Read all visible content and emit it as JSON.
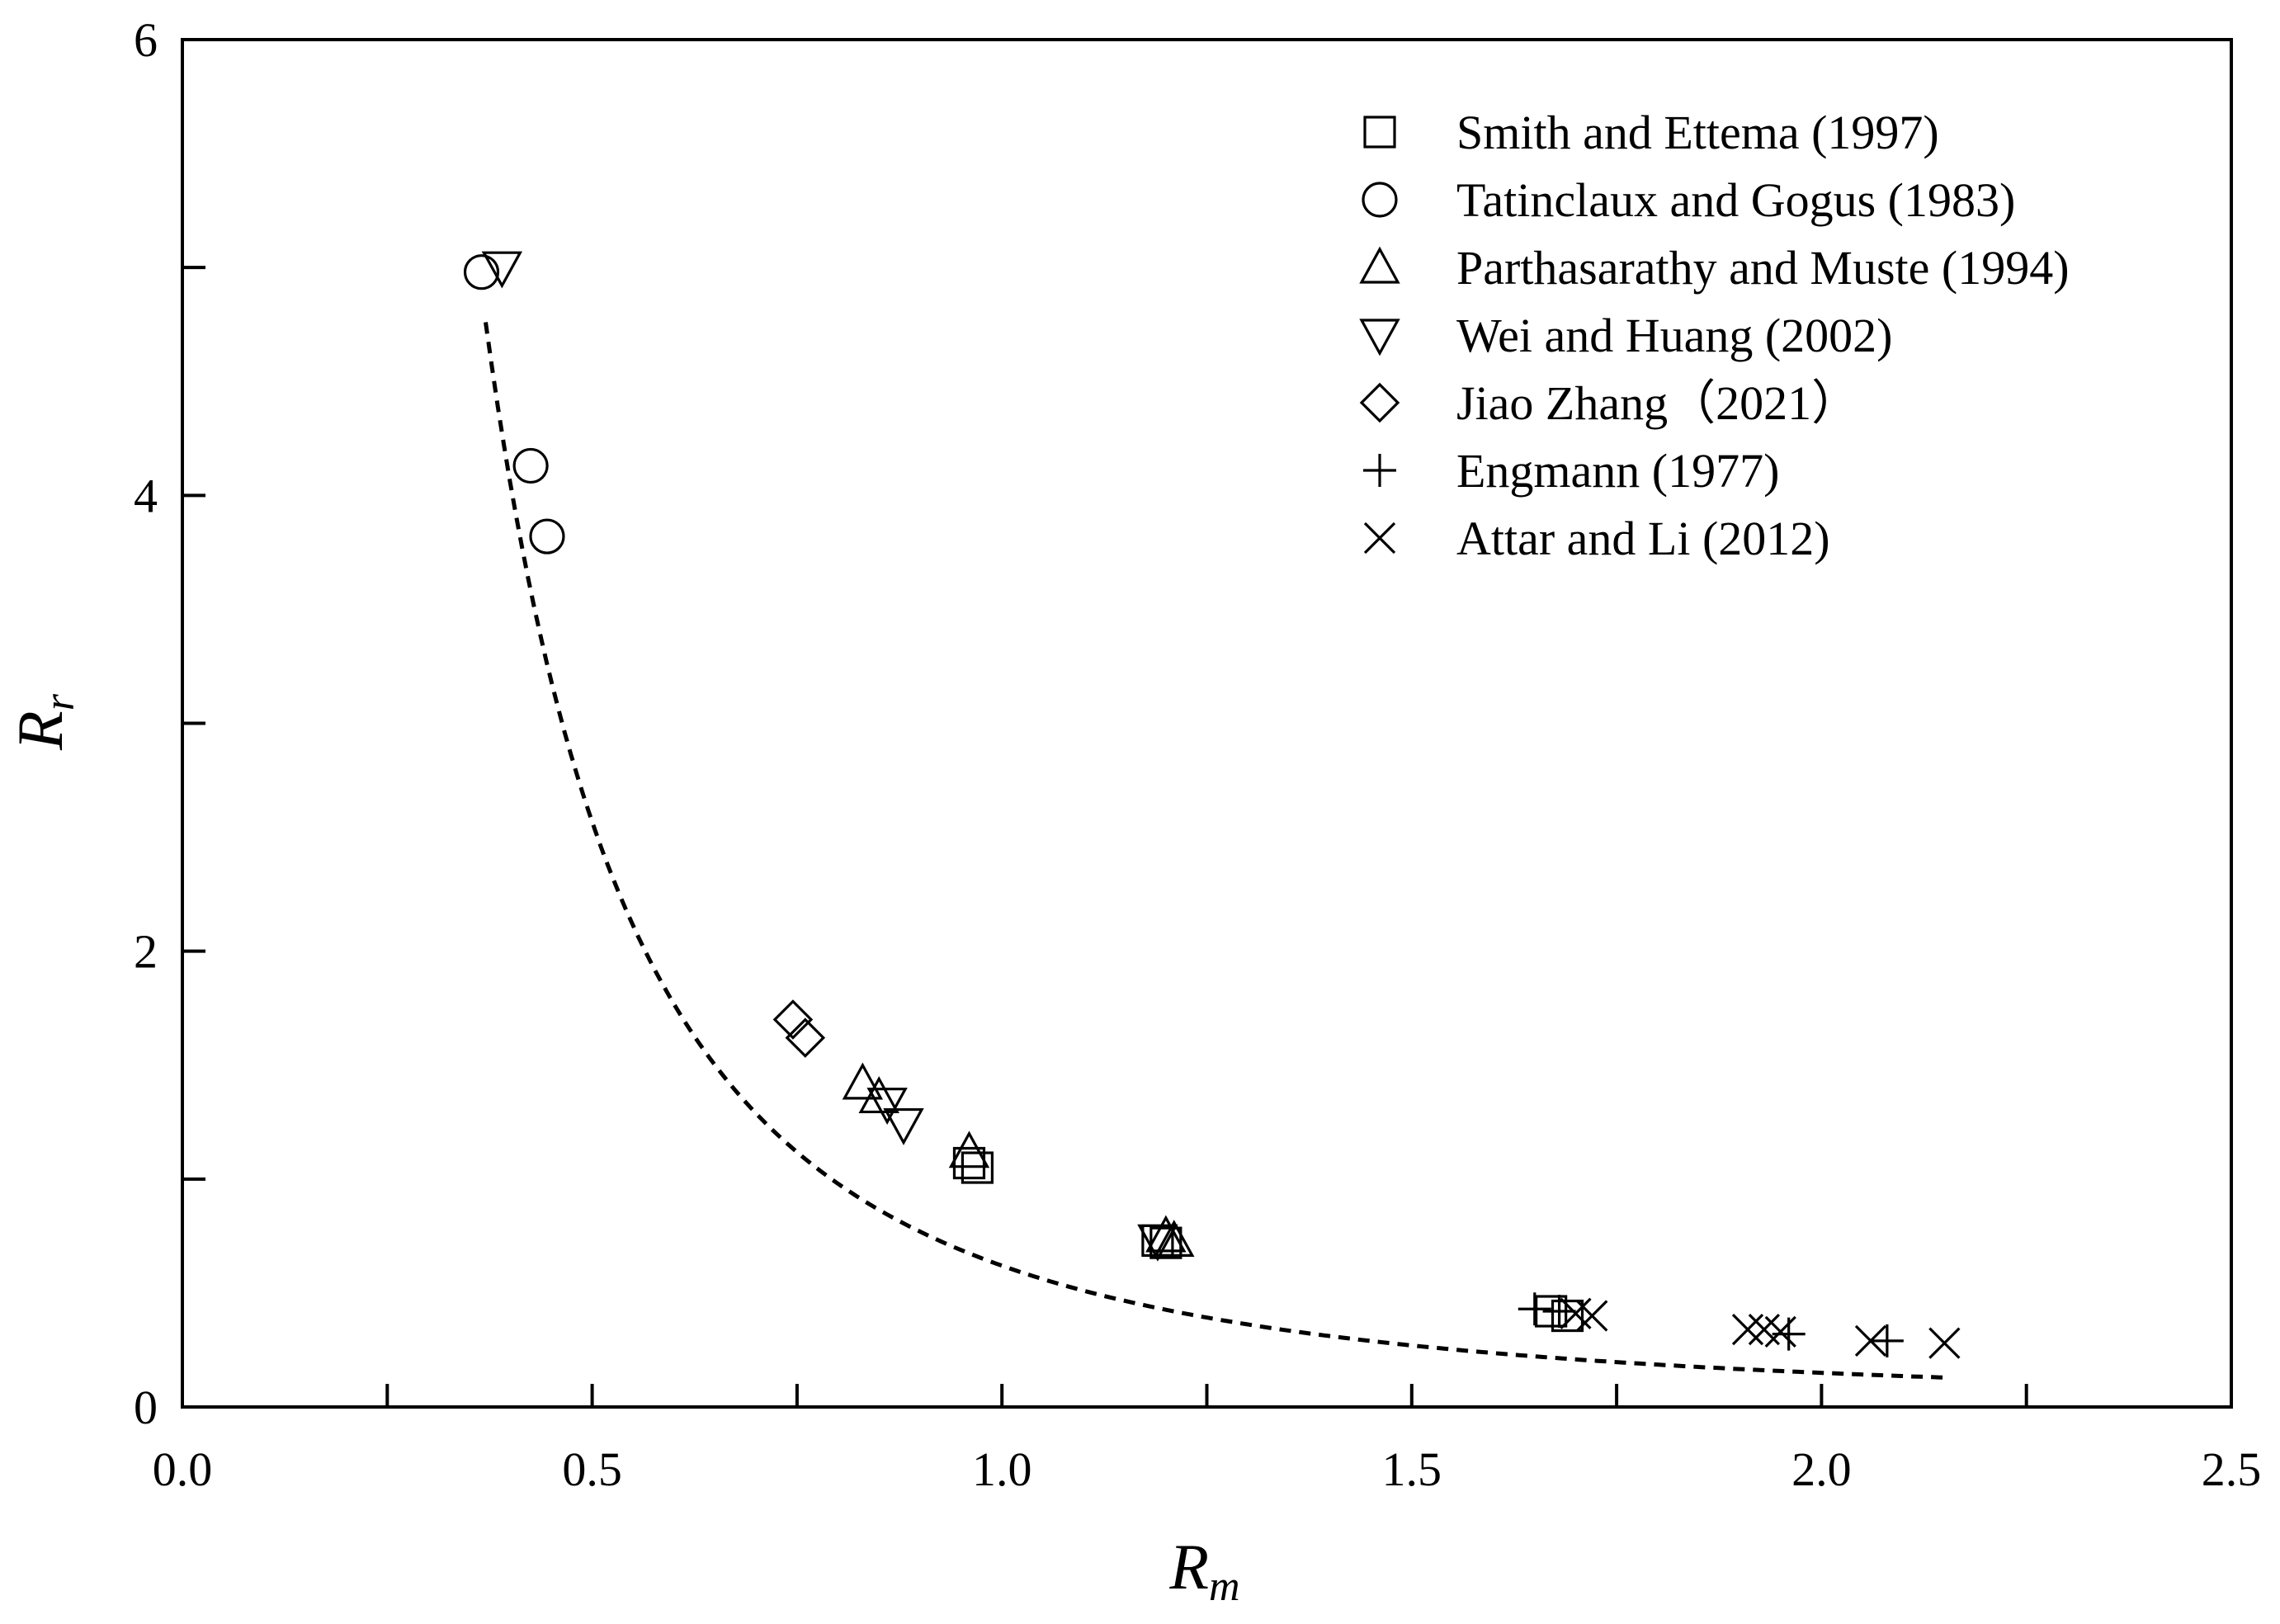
{
  "chart_data": {
    "type": "scatter",
    "title": "",
    "xlabel": {
      "base": "R",
      "sub": "m"
    },
    "ylabel": {
      "base": "R",
      "sub": "r"
    },
    "xlim": [
      0.0,
      2.5
    ],
    "ylim": [
      0,
      6
    ],
    "x_ticks": [
      "0.0",
      "0.5",
      "1.0",
      "1.5",
      "2.0",
      "2.5"
    ],
    "x_tick_values": [
      0.0,
      0.5,
      1.0,
      1.5,
      2.0,
      2.5
    ],
    "x_minor_ticks": [
      0.25,
      0.75,
      1.25,
      1.75,
      2.25
    ],
    "y_ticks": [
      "0",
      "2",
      "4",
      "6"
    ],
    "y_tick_values": [
      0,
      2,
      4,
      6
    ],
    "y_minor_ticks": [
      1,
      3,
      5
    ],
    "grid": false,
    "legend_position": "top-right",
    "fit_curve": {
      "style": "dashed",
      "x_range": [
        0.37,
        2.15
      ],
      "form": "y = 0.62 / x^2.05"
    },
    "series": [
      {
        "name": "Smith and Ettema (1997)",
        "marker": "square",
        "points": [
          [
            0.96,
            1.07
          ],
          [
            0.97,
            1.05
          ],
          [
            1.19,
            0.73
          ],
          [
            1.2,
            0.72
          ],
          [
            1.67,
            0.42
          ],
          [
            1.69,
            0.4
          ]
        ]
      },
      {
        "name": "Tatinclaux and Gogus (1983)",
        "marker": "circle",
        "points": [
          [
            0.365,
            4.98
          ],
          [
            0.425,
            4.13
          ],
          [
            0.445,
            3.82
          ]
        ]
      },
      {
        "name": "Parthasarathy and Muste (1994)",
        "marker": "triangle-up",
        "points": [
          [
            0.83,
            1.42
          ],
          [
            0.85,
            1.36
          ],
          [
            0.96,
            1.12
          ],
          [
            1.2,
            0.75
          ],
          [
            1.21,
            0.73
          ]
        ]
      },
      {
        "name": "Wei and Huang (2002)",
        "marker": "triangle-down",
        "points": [
          [
            0.39,
            5.0
          ],
          [
            0.86,
            1.33
          ],
          [
            0.88,
            1.24
          ],
          [
            1.19,
            0.73
          ]
        ]
      },
      {
        "name": "Jiao Zhang（2021）",
        "marker": "diamond",
        "points": [
          [
            0.745,
            1.7
          ],
          [
            0.76,
            1.62
          ]
        ]
      },
      {
        "name": "Engmann (1977)",
        "marker": "plus",
        "points": [
          [
            1.65,
            0.43
          ],
          [
            1.68,
            0.42
          ],
          [
            1.96,
            0.32
          ],
          [
            2.08,
            0.29
          ]
        ]
      },
      {
        "name": "Attar and Li (2012)",
        "marker": "x",
        "points": [
          [
            1.7,
            0.41
          ],
          [
            1.72,
            0.4
          ],
          [
            1.91,
            0.34
          ],
          [
            1.93,
            0.34
          ],
          [
            1.95,
            0.33
          ],
          [
            2.06,
            0.29
          ],
          [
            2.15,
            0.28
          ]
        ]
      }
    ]
  }
}
